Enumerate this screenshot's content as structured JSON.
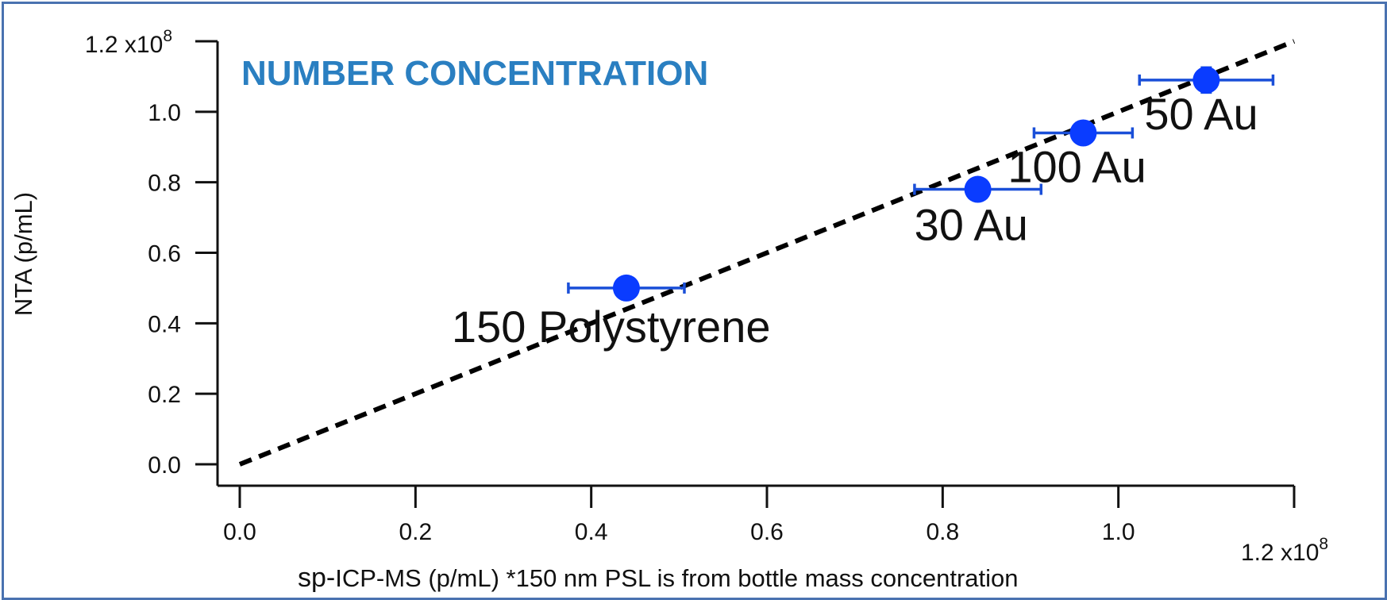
{
  "chart_data": {
    "type": "scatter",
    "title": "NUMBER CONCENTRATION",
    "xlabel_prefix": "sp-",
    "xlabel": "ICP-MS (p/mL)  *150 nm PSL is from bottle mass concentration",
    "ylabel": "NTA (p/mL)",
    "x_ticks": [
      0.0,
      0.2,
      0.4,
      0.6,
      0.8,
      1.0
    ],
    "x_tick_labels": [
      "0.0",
      "0.2",
      "0.4",
      "0.6",
      "0.8",
      "1.0"
    ],
    "x_max_label": "1.2 x10",
    "x_max_exp": "8",
    "y_ticks": [
      0.0,
      0.2,
      0.4,
      0.6,
      0.8,
      1.0
    ],
    "y_tick_labels": [
      "0.0",
      "0.2",
      "0.4",
      "0.6",
      "0.8",
      "1.0"
    ],
    "y_max_label": "1.2 x10",
    "y_max_exp": "8",
    "xlim": [
      0,
      1.2
    ],
    "ylim": [
      0,
      1.2
    ],
    "scale_multiplier": 100000000,
    "grid": false,
    "reference_line": {
      "style": "dashed",
      "color": "#000000",
      "from": [
        0,
        0
      ],
      "to": [
        1.2,
        1.2
      ]
    },
    "marker_color": "#0a3cff",
    "errorbar_color": "#1a4fd8",
    "points": [
      {
        "label": "150 Polystyrene",
        "x": 0.44,
        "y": 0.5,
        "xerr": 0.066,
        "yerr": 0.01
      },
      {
        "label": "30 Au",
        "x": 0.84,
        "y": 0.78,
        "xerr": 0.072,
        "yerr": 0.03
      },
      {
        "label": "100 Au",
        "x": 0.96,
        "y": 0.94,
        "xerr": 0.056,
        "yerr": 0.01
      },
      {
        "label": "50 Au",
        "x": 1.1,
        "y": 1.09,
        "xerr": 0.076,
        "yerr": 0.035
      }
    ]
  }
}
